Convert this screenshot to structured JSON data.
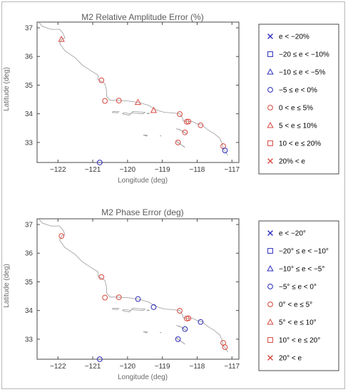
{
  "colors": {
    "red": "#d9453d",
    "blue": "#2a2abf",
    "coast": "#9a9a9a",
    "frame": "#4a4a4a"
  },
  "legend_markers": [
    "x-mark",
    "square",
    "triangle",
    "circle",
    "circle",
    "triangle",
    "square",
    "x-mark"
  ],
  "legend_colors": [
    "blue",
    "blue",
    "blue",
    "blue",
    "red",
    "red",
    "red",
    "red"
  ],
  "chart_data": [
    {
      "type": "scatter",
      "title": "M2 Relative Amplitude Error (%)",
      "xlabel": "Longitude (deg)",
      "ylabel": "Latitude (deg)",
      "xlim": [
        -122.6,
        -116.8
      ],
      "ylim": [
        32.3,
        37.2
      ],
      "xticks": [
        -122,
        -121,
        -120,
        -119,
        -118,
        -117
      ],
      "yticks": [
        33,
        34,
        35,
        36,
        37
      ],
      "grid": false,
      "legend_position": "right",
      "legend": [
        "e < −20%",
        "−20 ≤ e < −10%",
        "−10 ≤ e < −5%",
        "−5 ≤ e < 0%",
        "0 < e ≤ 5%",
        "5 < e ≤ 10%",
        "10 < e ≤ 20%",
        "20% < e"
      ],
      "points": [
        {
          "x": -121.9,
          "y": 36.6,
          "cls": 5
        },
        {
          "x": -120.75,
          "y": 35.17,
          "cls": 4
        },
        {
          "x": -120.65,
          "y": 34.45,
          "cls": 4
        },
        {
          "x": -120.25,
          "y": 34.46,
          "cls": 4
        },
        {
          "x": -119.7,
          "y": 34.4,
          "cls": 5
        },
        {
          "x": -119.25,
          "y": 34.12,
          "cls": 5
        },
        {
          "x": -118.5,
          "y": 33.99,
          "cls": 4
        },
        {
          "x": -118.3,
          "y": 33.72,
          "cls": 4
        },
        {
          "x": -118.25,
          "y": 33.73,
          "cls": 4
        },
        {
          "x": -118.35,
          "y": 33.35,
          "cls": 4
        },
        {
          "x": -117.9,
          "y": 33.6,
          "cls": 4
        },
        {
          "x": -118.55,
          "y": 33.0,
          "cls": 4
        },
        {
          "x": -117.25,
          "y": 32.87,
          "cls": 4
        },
        {
          "x": -117.2,
          "y": 32.72,
          "cls": 3
        },
        {
          "x": -120.8,
          "y": 32.3,
          "cls": 3
        }
      ]
    },
    {
      "type": "scatter",
      "title": "M2 Phase Error (deg)",
      "xlabel": "Longitude (deg)",
      "ylabel": "Latitude (deg)",
      "xlim": [
        -122.6,
        -116.8
      ],
      "ylim": [
        32.3,
        37.2
      ],
      "xticks": [
        -122,
        -121,
        -120,
        -119,
        -118,
        -117
      ],
      "yticks": [
        33,
        34,
        35,
        36,
        37
      ],
      "grid": false,
      "legend_position": "right",
      "legend": [
        "e < −20°",
        "−20° ≤ e < −10°",
        "−10° ≤ e < −5°",
        "−5° ≤ e < 0°",
        "0° < e ≤ 5°",
        "5° < e ≤ 10°",
        "10° < e ≤ 20°",
        "20° < e"
      ],
      "points": [
        {
          "x": -121.9,
          "y": 36.6,
          "cls": 4
        },
        {
          "x": -120.75,
          "y": 35.17,
          "cls": 4
        },
        {
          "x": -120.65,
          "y": 34.45,
          "cls": 4
        },
        {
          "x": -120.25,
          "y": 34.46,
          "cls": 4
        },
        {
          "x": -119.7,
          "y": 34.4,
          "cls": 3
        },
        {
          "x": -119.25,
          "y": 34.12,
          "cls": 3
        },
        {
          "x": -118.5,
          "y": 33.99,
          "cls": 4
        },
        {
          "x": -118.3,
          "y": 33.72,
          "cls": 4
        },
        {
          "x": -118.25,
          "y": 33.73,
          "cls": 4
        },
        {
          "x": -118.35,
          "y": 33.35,
          "cls": 3
        },
        {
          "x": -117.9,
          "y": 33.6,
          "cls": 3
        },
        {
          "x": -118.55,
          "y": 33.0,
          "cls": 3
        },
        {
          "x": -117.25,
          "y": 32.87,
          "cls": 4
        },
        {
          "x": -117.2,
          "y": 32.72,
          "cls": 4
        },
        {
          "x": -120.8,
          "y": 32.3,
          "cls": 3
        }
      ]
    }
  ]
}
